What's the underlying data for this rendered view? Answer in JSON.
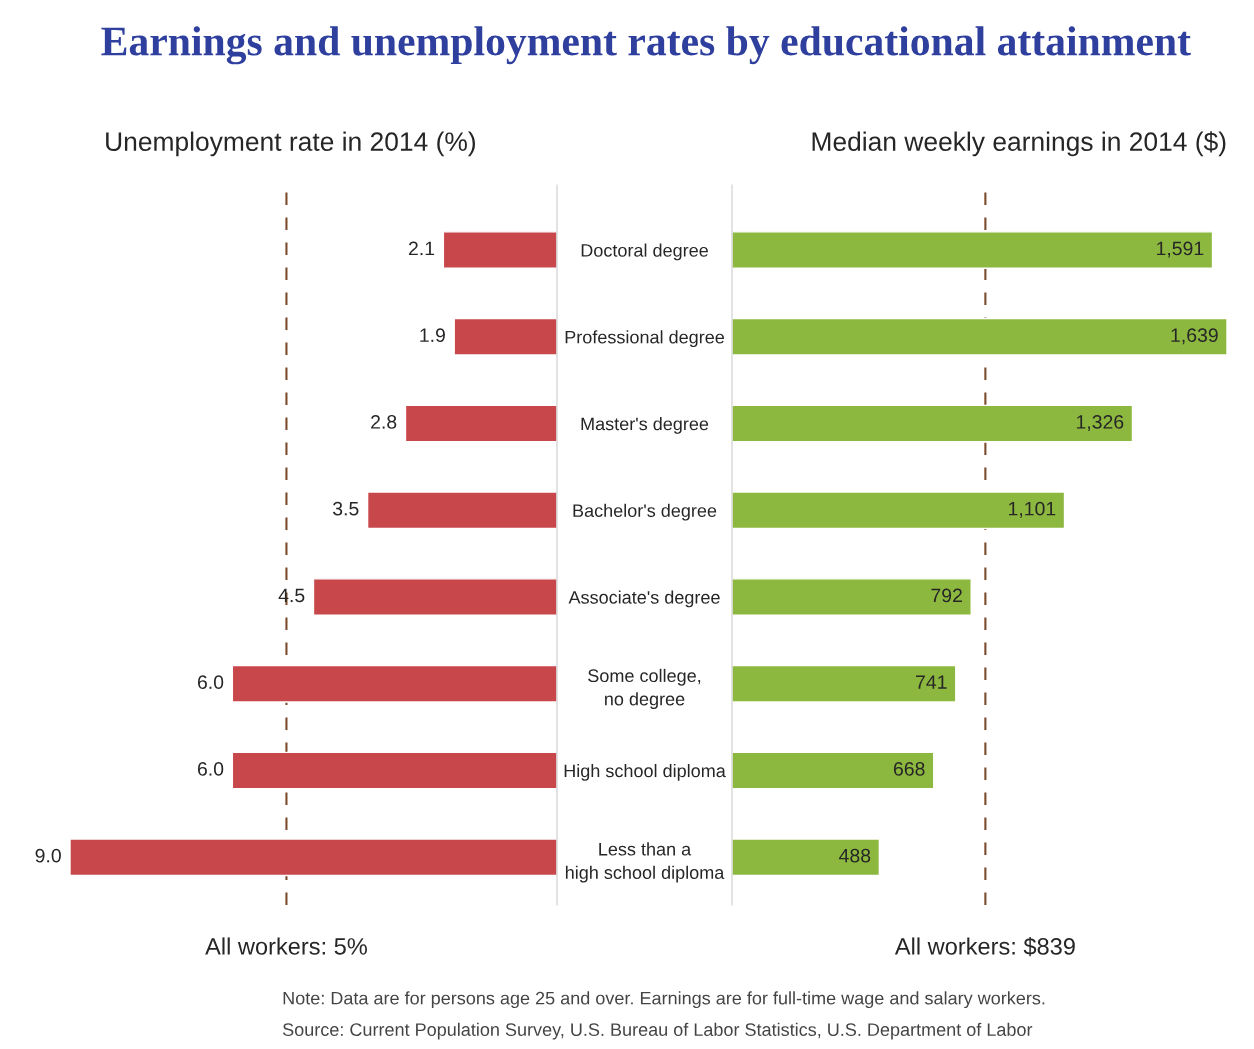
{
  "chart_data": [
    {
      "type": "bar",
      "orientation": "horizontal",
      "title": "Earnings and unemployment rates by educational attainment",
      "subtitle": "Unemployment rate in 2014 (%)",
      "categories": [
        "Doctoral degree",
        "Professional degree",
        "Master's degree",
        "Bachelor's degree",
        "Associate's degree",
        "Some college,\nno degree",
        "High school diploma",
        "Less than a\nhigh school diploma"
      ],
      "values": [
        2.1,
        1.9,
        2.8,
        3.5,
        4.5,
        6.0,
        6.0,
        9.0
      ],
      "value_labels": [
        "2.1",
        "1.9",
        "2.8",
        "3.5",
        "4.5",
        "6.0",
        "6.0",
        "9.0"
      ],
      "color": "#c8474a",
      "tick_labels": "y",
      "grid": false,
      "legend": false,
      "ref_lines": [
        {
          "axis": "x",
          "value": 5,
          "label": "All workers: 5%",
          "color": "#7a4a2a",
          "line_style": "dashed"
        }
      ]
    },
    {
      "type": "bar",
      "orientation": "horizontal",
      "subtitle": "Median weekly earnings in 2014 ($)",
      "categories": [
        null,
        null,
        null,
        null,
        null,
        null,
        null,
        null
      ],
      "values": [
        1591,
        1639,
        1326,
        1101,
        792,
        741,
        668,
        488
      ],
      "value_labels": [
        "1,591",
        "1,639",
        "1,326",
        "1,101",
        "792",
        "741",
        "668",
        "488"
      ],
      "color": "#8db83f",
      "tick_labels": false,
      "grid": false,
      "legend": false,
      "ref_lines": [
        {
          "axis": "x",
          "value": 839,
          "label": "All workers: $839",
          "color": "#7a4a2a",
          "line_style": "dashed"
        }
      ],
      "annotations": [
        "Note: Data are for persons age 25 and over. Earnings are for full-time wage and salary workers.",
        "Source: Current Population Survey, U.S. Bureau of Labor Statistics, U.S. Department of Labor"
      ]
    }
  ]
}
